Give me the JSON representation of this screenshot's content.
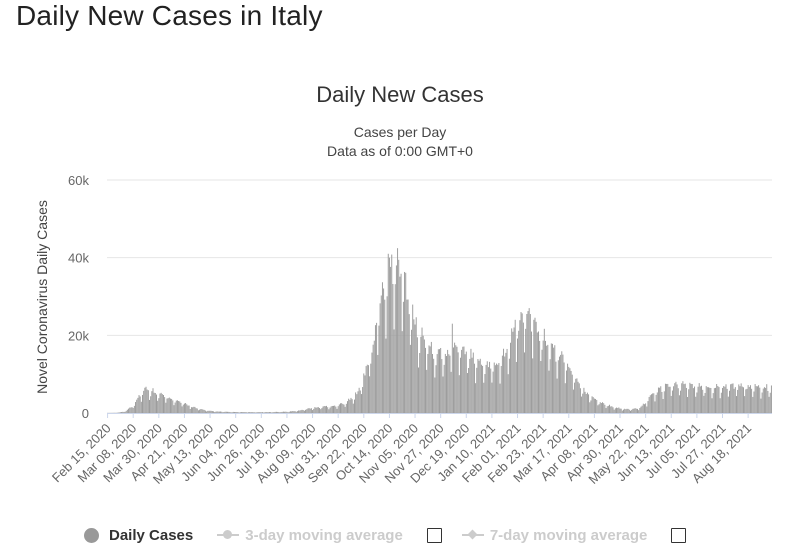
{
  "page": {
    "heading": "Daily New Cases in Italy"
  },
  "legend": {
    "items": [
      {
        "label": "Daily Cases",
        "enabled": true
      },
      {
        "label": "3-day moving average",
        "enabled": false,
        "checked": false
      },
      {
        "label": "7-day moving average",
        "enabled": false,
        "checked": false
      }
    ]
  },
  "colors": {
    "bar": "#999999",
    "grid": "#e6e6e6",
    "axis_text": "#666666",
    "title": "#333333",
    "inactive": "#cccccc"
  },
  "chart_data": {
    "type": "bar",
    "title": "Daily New Cases",
    "subtitle_lines": [
      "Cases per Day",
      "Data as of 0:00 GMT+0"
    ],
    "xlabel": "",
    "ylabel": "Novel Coronavirus Daily Cases",
    "ylim": [
      0,
      60000
    ],
    "y_ticks": [
      0,
      20000,
      40000,
      60000
    ],
    "y_tick_labels": [
      "0",
      "20k",
      "40k",
      "60k"
    ],
    "start_date": "2020-02-15",
    "end_date": "2021-09-07",
    "x_tick_labels": [
      "Feb 15, 2020",
      "Mar 08, 2020",
      "Mar 30, 2020",
      "Apr 21, 2020",
      "May 13, 2020",
      "Jun 04, 2020",
      "Jun 26, 2020",
      "Jul 18, 2020",
      "Aug 09, 2020",
      "Aug 31, 2020",
      "Sep 22, 2020",
      "Oct 14, 2020",
      "Nov 05, 2020",
      "Nov 27, 2020",
      "Dec 19, 2020",
      "Jan 10, 2021",
      "Feb 01, 2021",
      "Feb 23, 2021",
      "Mar 17, 2021",
      "Apr 08, 2021",
      "Apr 30, 2021",
      "May 22, 2021",
      "Jun 13, 2021",
      "Jul 05, 2021",
      "Jul 27, 2021",
      "Aug 18, 2021"
    ],
    "x_tick_every_days": 22,
    "trend_keypoints_day_value": [
      [
        0,
        0
      ],
      [
        7,
        30
      ],
      [
        14,
        300
      ],
      [
        21,
        1500
      ],
      [
        26,
        3500
      ],
      [
        30,
        5500
      ],
      [
        34,
        5800
      ],
      [
        38,
        5300
      ],
      [
        45,
        4500
      ],
      [
        52,
        3800
      ],
      [
        60,
        3000
      ],
      [
        68,
        2000
      ],
      [
        76,
        1200
      ],
      [
        85,
        600
      ],
      [
        95,
        350
      ],
      [
        108,
        250
      ],
      [
        125,
        200
      ],
      [
        140,
        220
      ],
      [
        155,
        320
      ],
      [
        165,
        600
      ],
      [
        175,
        1200
      ],
      [
        185,
        1500
      ],
      [
        195,
        1700
      ],
      [
        205,
        2500
      ],
      [
        215,
        5000
      ],
      [
        222,
        10000
      ],
      [
        229,
        18000
      ],
      [
        235,
        28000
      ],
      [
        240,
        33000
      ],
      [
        245,
        36000
      ],
      [
        250,
        35500
      ],
      [
        256,
        30000
      ],
      [
        262,
        24000
      ],
      [
        270,
        18000
      ],
      [
        276,
        16500
      ],
      [
        282,
        15000
      ],
      [
        290,
        14000
      ],
      [
        297,
        17000
      ],
      [
        304,
        16000
      ],
      [
        312,
        14000
      ],
      [
        318,
        12500
      ],
      [
        325,
        12000
      ],
      [
        332,
        11500
      ],
      [
        340,
        13500
      ],
      [
        346,
        18000
      ],
      [
        352,
        21000
      ],
      [
        358,
        23000
      ],
      [
        364,
        22000
      ],
      [
        370,
        20000
      ],
      [
        376,
        17500
      ],
      [
        382,
        15500
      ],
      [
        390,
        13500
      ],
      [
        397,
        11000
      ],
      [
        404,
        8000
      ],
      [
        410,
        5000
      ],
      [
        418,
        3500
      ],
      [
        426,
        2200
      ],
      [
        434,
        1500
      ],
      [
        442,
        1000
      ],
      [
        450,
        900
      ],
      [
        456,
        1200
      ],
      [
        462,
        2500
      ],
      [
        468,
        4500
      ],
      [
        474,
        5800
      ],
      [
        480,
        6500
      ],
      [
        486,
        6800
      ],
      [
        492,
        6700
      ],
      [
        500,
        6800
      ],
      [
        508,
        6400
      ],
      [
        571,
        6300
      ]
    ],
    "peaks_day_value": [
      [
        32,
        6500
      ],
      [
        241,
        41000
      ],
      [
        244,
        40800
      ],
      [
        248,
        38000
      ],
      [
        270,
        22000
      ],
      [
        296,
        23000
      ],
      [
        350,
        24000
      ],
      [
        355,
        26000
      ],
      [
        360,
        25500
      ],
      [
        366,
        24000
      ]
    ]
  }
}
